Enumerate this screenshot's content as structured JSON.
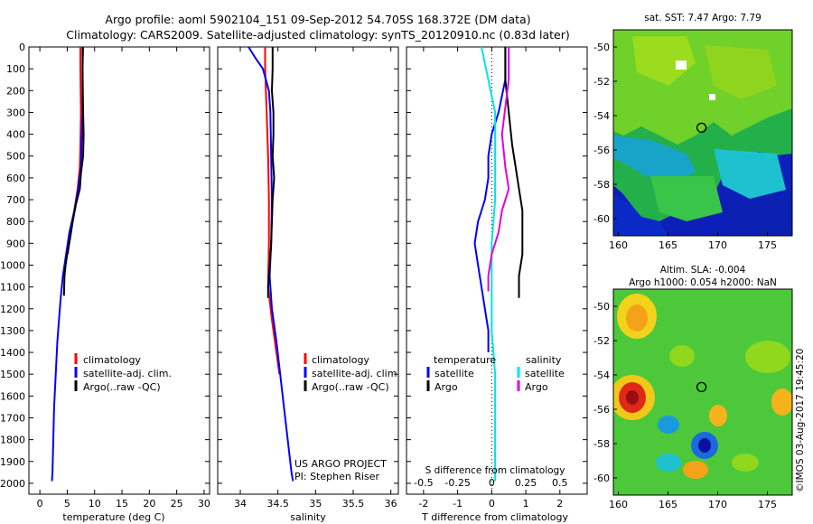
{
  "header": {
    "title_line1": "Argo profile: aoml 5902104_151 09-Sep-2012 54.705S 168.372E (DM data)",
    "title_line2": "Climatology: CARS2009. Satellite-adjusted climatology: synTS_20120910.nc (0.83d later)"
  },
  "colors": {
    "climatology": "#ff0000",
    "satellite": "#0000ff",
    "argo": "#000000",
    "satellite_salinity": "#00e5e5",
    "argo_salinity": "#e000e0"
  },
  "chart_data": [
    {
      "name": "temperature-profile",
      "type": "line",
      "xlabel": "temperature (deg C)",
      "ylabel": "",
      "xlim": [
        -2,
        31
      ],
      "ylim": [
        2050,
        0
      ],
      "xticks": [
        0,
        5,
        10,
        15,
        20,
        25,
        30
      ],
      "yticks": [
        0,
        100,
        200,
        300,
        400,
        500,
        600,
        700,
        800,
        900,
        1000,
        1100,
        1200,
        1300,
        1400,
        1500,
        1600,
        1700,
        1800,
        1900,
        2000
      ],
      "legend": [
        "climatology",
        "satellite-adj. clim.",
        "Argo(..raw -QC)"
      ],
      "series": [
        {
          "name": "climatology",
          "color": "#ff0000",
          "points": [
            [
              7.4,
              0
            ],
            [
              7.4,
              100
            ],
            [
              7.5,
              300
            ],
            [
              7.4,
              450
            ],
            [
              7.3,
              550
            ],
            [
              6.9,
              650
            ],
            [
              6.3,
              750
            ],
            [
              5.6,
              850
            ],
            [
              5.1,
              950
            ]
          ]
        },
        {
          "name": "satellite-adj. clim.",
          "color": "#0000ff",
          "points": [
            [
              7.9,
              0
            ],
            [
              7.8,
              100
            ],
            [
              7.8,
              300
            ],
            [
              7.6,
              450
            ],
            [
              7.5,
              550
            ],
            [
              7.0,
              650
            ],
            [
              6.3,
              750
            ],
            [
              5.4,
              850
            ],
            [
              4.8,
              950
            ],
            [
              4.2,
              1050
            ],
            [
              3.8,
              1150
            ],
            [
              3.5,
              1250
            ],
            [
              3.2,
              1350
            ],
            [
              3.0,
              1450
            ],
            [
              2.8,
              1550
            ],
            [
              2.6,
              1650
            ],
            [
              2.5,
              1750
            ],
            [
              2.4,
              1850
            ],
            [
              2.3,
              1950
            ],
            [
              2.2,
              1990
            ]
          ]
        },
        {
          "name": "Argo(..raw -QC)",
          "color": "#000000",
          "points": [
            [
              7.8,
              0
            ],
            [
              7.8,
              100
            ],
            [
              7.9,
              300
            ],
            [
              8.0,
              400
            ],
            [
              7.9,
              500
            ],
            [
              7.5,
              580
            ],
            [
              7.3,
              650
            ],
            [
              6.6,
              720
            ],
            [
              6.0,
              800
            ],
            [
              5.5,
              880
            ],
            [
              5.0,
              950
            ],
            [
              4.7,
              1000
            ],
            [
              4.5,
              1050
            ],
            [
              4.4,
              1140
            ]
          ]
        }
      ]
    },
    {
      "name": "salinity-profile",
      "type": "line",
      "xlabel": "salinity",
      "ylabel": "",
      "xlim": [
        33.7,
        36.1
      ],
      "ylim": [
        2050,
        0
      ],
      "xticks": [
        34,
        34.5,
        35,
        35.5,
        36
      ],
      "legend": [
        "climatology",
        "satellite-adj. clim.",
        "Argo(..raw -QC)"
      ],
      "annotation_line1": "US ARGO PROJECT",
      "annotation_line2": "PI: Stephen Riser",
      "series": [
        {
          "name": "climatology",
          "color": "#ff0000",
          "points": [
            [
              34.33,
              0
            ],
            [
              34.33,
              100
            ],
            [
              34.35,
              300
            ],
            [
              34.37,
              500
            ],
            [
              34.38,
              700
            ],
            [
              34.38,
              900
            ],
            [
              34.37,
              1100
            ],
            [
              34.42,
              1250
            ],
            [
              34.48,
              1400
            ],
            [
              34.52,
              1500
            ]
          ]
        },
        {
          "name": "satellite-adj. clim.",
          "color": "#0000ff",
          "points": [
            [
              34.11,
              0
            ],
            [
              34.2,
              50
            ],
            [
              34.3,
              100
            ],
            [
              34.38,
              200
            ],
            [
              34.4,
              300
            ],
            [
              34.41,
              500
            ],
            [
              34.42,
              700
            ],
            [
              34.41,
              900
            ],
            [
              34.39,
              1050
            ],
            [
              34.42,
              1200
            ],
            [
              34.48,
              1350
            ],
            [
              34.53,
              1500
            ],
            [
              34.58,
              1650
            ],
            [
              34.63,
              1800
            ],
            [
              34.68,
              1950
            ],
            [
              34.7,
              1990
            ]
          ]
        },
        {
          "name": "Argo(..raw -QC)",
          "color": "#000000",
          "points": [
            [
              34.43,
              0
            ],
            [
              34.43,
              100
            ],
            [
              34.42,
              200
            ],
            [
              34.44,
              300
            ],
            [
              34.44,
              400
            ],
            [
              34.43,
              500
            ],
            [
              34.45,
              600
            ],
            [
              34.43,
              700
            ],
            [
              34.42,
              800
            ],
            [
              34.41,
              900
            ],
            [
              34.39,
              1000
            ],
            [
              34.37,
              1100
            ],
            [
              34.37,
              1150
            ]
          ]
        }
      ]
    },
    {
      "name": "difference-profile",
      "type": "line",
      "xlabel": "T difference from climatology",
      "xlabel_top": "S difference from climatology",
      "xlim": [
        -2.5,
        2.8
      ],
      "ylim": [
        2050,
        0
      ],
      "xticks": [
        -2,
        -1,
        0,
        1,
        2
      ],
      "xticks_salinity": [
        "-0.5",
        "-0.25",
        "0",
        "0.25",
        "0.5"
      ],
      "legend_temperature_title": "temperature",
      "legend_salinity_title": "salinity",
      "legend_temperature": [
        "satellite",
        "Argo"
      ],
      "legend_salinity": [
        "satellite",
        "Argo"
      ],
      "series": [
        {
          "name": "temperature satellite",
          "color": "#0000ff",
          "points": [
            [
              0.4,
              0
            ],
            [
              0.4,
              150
            ],
            [
              0.2,
              300
            ],
            [
              0.0,
              400
            ],
            [
              -0.1,
              500
            ],
            [
              -0.1,
              600
            ],
            [
              -0.2,
              700
            ],
            [
              -0.4,
              800
            ],
            [
              -0.5,
              900
            ],
            [
              -0.4,
              1000
            ],
            [
              -0.3,
              1100
            ],
            [
              -0.2,
              1200
            ],
            [
              -0.1,
              1300
            ],
            [
              -0.1,
              1400
            ]
          ]
        },
        {
          "name": "temperature Argo",
          "color": "#000000",
          "points": [
            [
              0.4,
              0
            ],
            [
              0.4,
              150
            ],
            [
              0.5,
              300
            ],
            [
              0.6,
              450
            ],
            [
              0.7,
              550
            ],
            [
              0.8,
              650
            ],
            [
              0.9,
              750
            ],
            [
              0.9,
              850
            ],
            [
              0.9,
              950
            ],
            [
              0.8,
              1050
            ],
            [
              0.8,
              1150
            ]
          ]
        },
        {
          "name": "salinity satellite",
          "color": "#00e5e5",
          "points": [
            [
              -0.3,
              0
            ],
            [
              -0.1,
              150
            ],
            [
              0.1,
              300
            ],
            [
              0.1,
              500
            ],
            [
              0.1,
              700
            ],
            [
              0.0,
              900
            ],
            [
              0.0,
              1100
            ],
            [
              0.0,
              1300
            ],
            [
              0.1,
              1500
            ],
            [
              0.1,
              1990
            ]
          ]
        },
        {
          "name": "salinity Argo",
          "color": "#e000e0",
          "points": [
            [
              0.5,
              0
            ],
            [
              0.5,
              150
            ],
            [
              0.3,
              400
            ],
            [
              0.4,
              550
            ],
            [
              0.5,
              650
            ],
            [
              0.3,
              750
            ],
            [
              0.2,
              850
            ],
            [
              0.0,
              950
            ],
            [
              -0.1,
              1050
            ],
            [
              -0.1,
              1120
            ]
          ]
        }
      ]
    },
    {
      "name": "sst-map",
      "type": "heatmap",
      "title": "sat. SST: 7.47 Argo: 7.79",
      "xlim": [
        159.5,
        177.5
      ],
      "ylim": [
        -61,
        -49
      ],
      "xticks": [
        160,
        165,
        170,
        175
      ],
      "yticks": [
        -50,
        -52,
        -54,
        -56,
        -58,
        -60
      ],
      "argo_position": [
        168.372,
        -54.705
      ]
    },
    {
      "name": "sla-map",
      "type": "heatmap",
      "title_line1": "Altim. SLA: -0.004",
      "title_line2": "Argo h1000: 0.054 h2000: NaN",
      "xlim": [
        159.5,
        177.5
      ],
      "ylim": [
        -61,
        -49
      ],
      "xticks": [
        160,
        165,
        170,
        175
      ],
      "yticks": [
        -50,
        -52,
        -54,
        -56,
        -58,
        -60
      ],
      "argo_position": [
        168.372,
        -54.705
      ]
    }
  ],
  "footer": {
    "credit": "©IMOS 03-Aug-2017 19:45:20"
  }
}
